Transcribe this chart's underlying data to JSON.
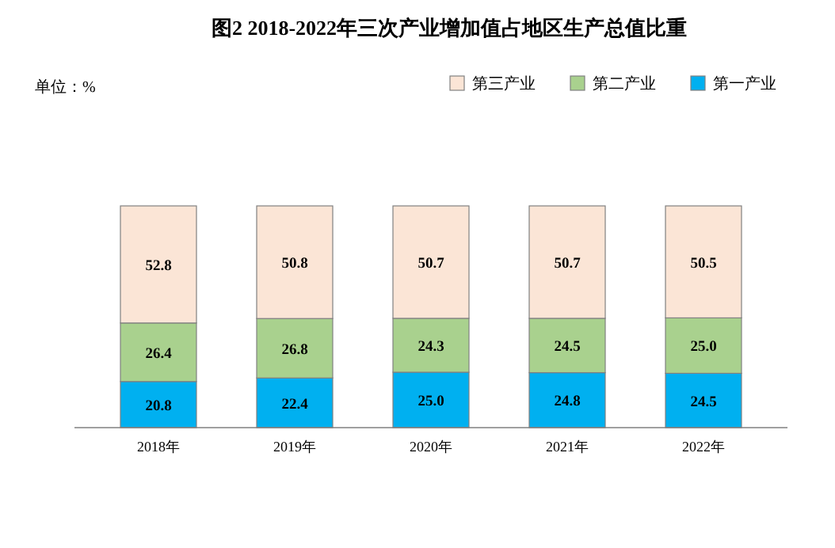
{
  "chart_data": {
    "type": "bar",
    "stacked": true,
    "title": "图2  2018-2022年三次产业增加值占地区生产总值比重",
    "annotations": [
      "单位：%"
    ],
    "categories": [
      "2018年",
      "2019年",
      "2020年",
      "2021年",
      "2022年"
    ],
    "series": [
      {
        "name": "第一产业",
        "color": "#00b0f0",
        "values": [
          20.8,
          22.4,
          25,
          24.8,
          24.5
        ],
        "value_labels": [
          "20.8",
          "22.4",
          "25.0",
          "24.8",
          "24.5"
        ]
      },
      {
        "name": "第二产业",
        "color": "#a9d18e",
        "values": [
          26.4,
          26.8,
          24.3,
          24.5,
          25
        ],
        "value_labels": [
          "26.4",
          "26.8",
          "24.3",
          "24.5",
          "25.0"
        ]
      },
      {
        "name": "第三产业",
        "color": "#fbe5d6",
        "values": [
          52.8,
          50.8,
          50.7,
          50.7,
          50.5
        ],
        "value_labels": [
          "52.8",
          "50.8",
          "50.7",
          "50.7",
          "50.5"
        ]
      }
    ],
    "legend": "top right"
  }
}
